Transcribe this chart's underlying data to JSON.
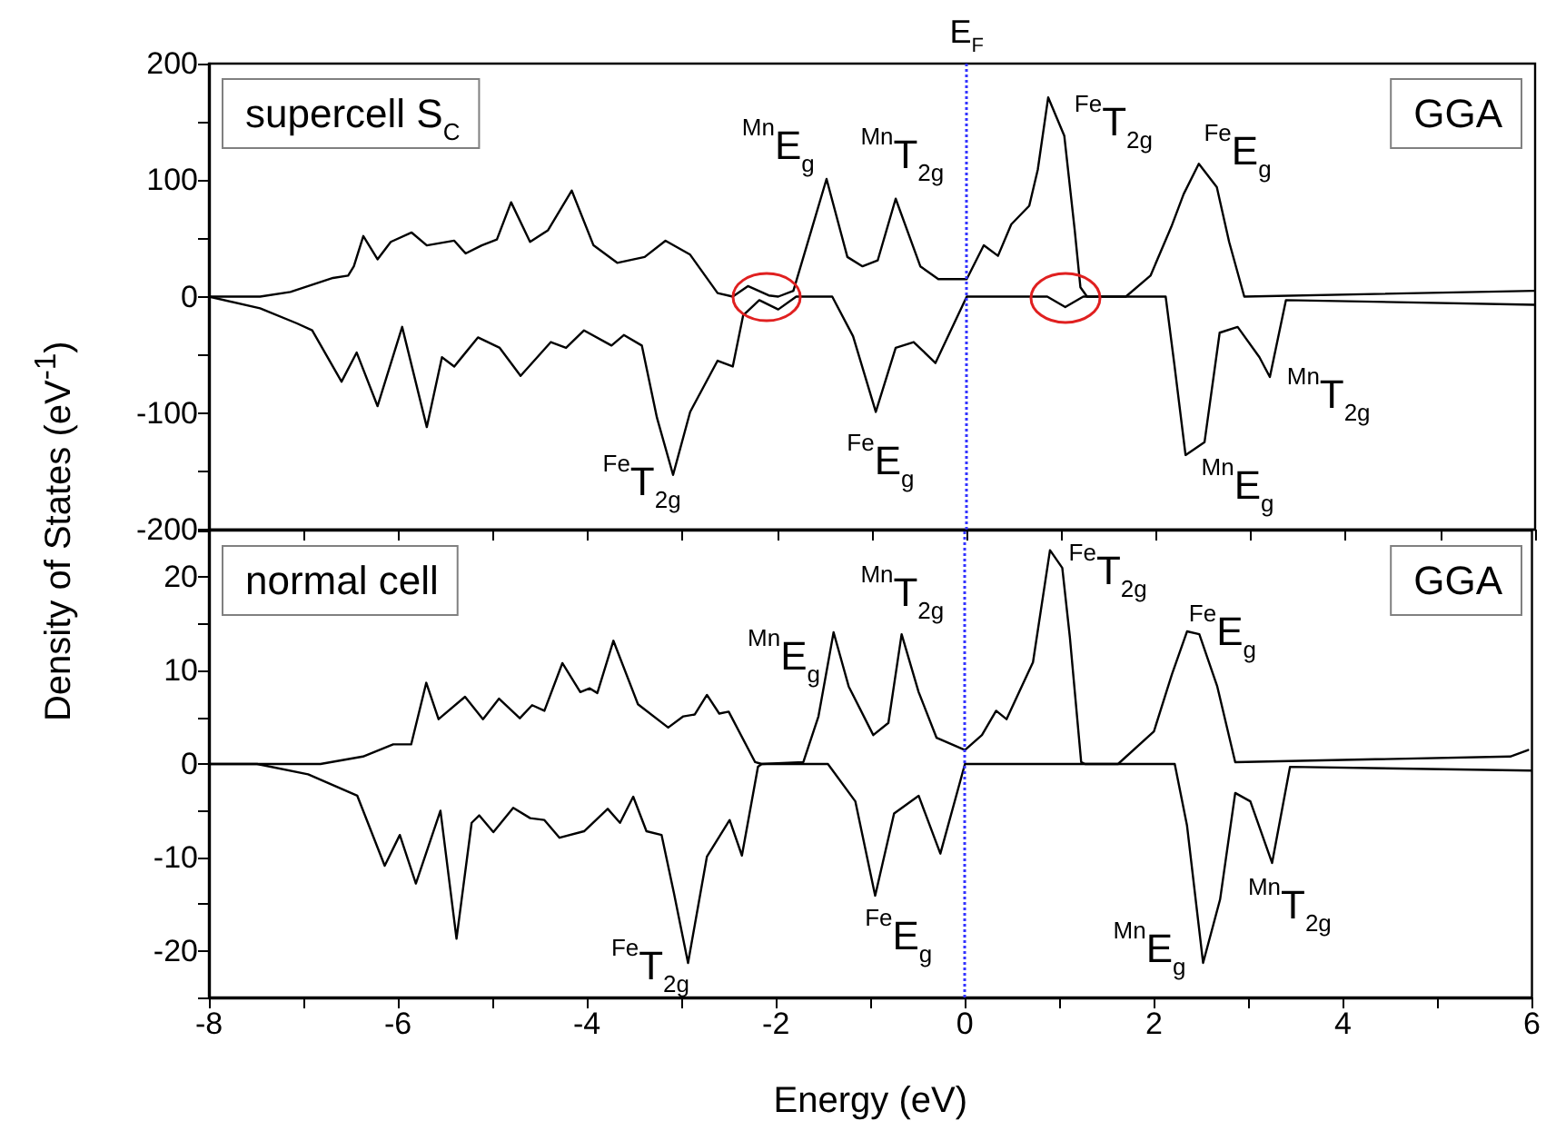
{
  "chart_data": [
    {
      "type": "line",
      "ylabel": "Density of States (eV$^{-1}$)",
      "xlim": [
        -8,
        6
      ],
      "ylim": [
        -200,
        200
      ],
      "xticks": [
        -8,
        {
          "value": -7,
          "label": null
        },
        -6,
        {
          "value": -5,
          "label": null
        },
        -4,
        {
          "value": -3,
          "label": null
        },
        -2,
        {
          "value": -1,
          "label": null
        },
        0,
        {
          "value": 1,
          "label": null
        },
        2,
        {
          "value": 3,
          "label": null
        },
        4,
        {
          "value": 5,
          "label": null
        },
        6
      ],
      "yticks": [
        -200,
        {
          "value": -150,
          "label": null
        },
        -100,
        {
          "value": -50,
          "label": null
        },
        0,
        {
          "value": 50,
          "label": null
        },
        100,
        {
          "value": 150,
          "label": null
        },
        200
      ],
      "tick_labels": "y",
      "grid": false,
      "series": [
        {
          "color": "#000000",
          "x": [
            -8,
            -7.46,
            -7.14,
            -6.69,
            -6.53,
            -6.47,
            -6.37,
            -6.22,
            -6.08,
            -5.86,
            -5.7,
            -5.41,
            -5.29,
            -5.12,
            -4.96,
            -4.81,
            -4.61,
            -4.42,
            -4.17,
            -3.94,
            -3.69,
            -3.4,
            -3.18,
            -2.92,
            -2.63,
            -2.47,
            -2.31,
            -2.09,
            -1.99,
            -1.83,
            -1.64,
            -1.48,
            -1.26,
            -1.1,
            -0.94,
            -0.75,
            -0.49,
            -0.3,
            -0.08,
            0,
            0.18,
            0.33,
            0.47,
            0.66,
            0.75,
            0.86,
            1.03,
            1.14,
            1.2,
            1.27,
            1.68,
            1.94,
            2.16,
            2.29,
            2.45,
            2.64,
            2.77,
            2.93,
            5.99
          ],
          "values": [
            0,
            0,
            4,
            16,
            18,
            26,
            52,
            32,
            47,
            55,
            44,
            48,
            37,
            44,
            49,
            81,
            47,
            57,
            91,
            44,
            29,
            34,
            48,
            36,
            3,
            0,
            9,
            1,
            0,
            5,
            57,
            101,
            34,
            26,
            31,
            84,
            26,
            15,
            15,
            15,
            44,
            35,
            62,
            78,
            109,
            171,
            138,
            57,
            8,
            0,
            0,
            18,
            60,
            88,
            114,
            94,
            47,
            0,
            5
          ]
        },
        {
          "color": "#000000",
          "x": [
            -8,
            -7.46,
            -7.07,
            -6.91,
            -6.6,
            -6.44,
            -6.22,
            -5.96,
            -5.7,
            -5.54,
            -5.41,
            -5.16,
            -4.93,
            -4.71,
            -4.39,
            -4.23,
            -4.04,
            -3.75,
            -3.62,
            -3.43,
            -3.27,
            -3.1,
            -2.92,
            -2.63,
            -2.47,
            -2.36,
            -2.19,
            -1.99,
            -1.8,
            -1.42,
            -1.2,
            -0.96,
            -0.75,
            -0.56,
            -0.33,
            0,
            0.85,
            1.04,
            1.23,
            2.1,
            2.19,
            2.31,
            2.51,
            2.67,
            2.86,
            3.09,
            3.2,
            3.37,
            5.99
          ],
          "values": [
            0,
            -10,
            -23,
            -29,
            -73,
            -48,
            -94,
            -26,
            -112,
            -52,
            -60,
            -35,
            -44,
            -68,
            -39,
            -44,
            -29,
            -42,
            -33,
            -42,
            -104,
            -153,
            -99,
            -55,
            -60,
            -16,
            -3,
            -11,
            0,
            0,
            -34,
            -99,
            -44,
            -39,
            -57,
            0,
            0,
            -9,
            0,
            0,
            -57,
            -136,
            -125,
            -31,
            -26,
            -52,
            -69,
            -3,
            -7
          ]
        }
      ],
      "ref_lines": [
        {
          "axis": "x",
          "value": 0,
          "label": "E$_{F}$",
          "color": "#3333ff",
          "line_style": "dotted"
        }
      ],
      "annotations": [
        "supercell S$_{C}$",
        "GGA",
        "$^{Mn}$E$_{g}$",
        "$^{Mn}$T$_{2g}$",
        "$^{Fe}$T$_{2g}$",
        "$^{Fe}$E$_{g}$",
        "$^{Fe}$T$_{2g}$",
        "$^{Fe}$E$_{g}$",
        "$^{Mn}$T$_{2g}$",
        "$^{Mn}$E$_{g}$"
      ]
    },
    {
      "type": "line",
      "xlabel": "Energy (eV)",
      "xlim": [
        -8,
        6
      ],
      "ylim": [
        -25,
        25
      ],
      "xticks": [
        -8,
        {
          "value": -7,
          "label": null
        },
        -6,
        {
          "value": -5,
          "label": null
        },
        -4,
        {
          "value": -3,
          "label": null
        },
        -2,
        {
          "value": -1,
          "label": null
        },
        0,
        {
          "value": 1,
          "label": null
        },
        2,
        {
          "value": 3,
          "label": null
        },
        4,
        {
          "value": 5,
          "label": null
        },
        6
      ],
      "yticks": [
        {
          "value": -25,
          "label": null
        },
        -20,
        {
          "value": -15,
          "label": null
        },
        -10,
        {
          "value": -5,
          "label": null
        },
        0,
        {
          "value": 5,
          "label": null
        },
        10,
        {
          "value": 15,
          "label": null
        },
        20,
        {
          "value": 25,
          "label": null
        }
      ],
      "grid": false,
      "series": [
        {
          "color": "#000000",
          "x": [
            -8,
            -6.82,
            -6.37,
            -6.05,
            -5.86,
            -5.7,
            -5.57,
            -5.29,
            -5.1,
            -4.93,
            -4.71,
            -4.58,
            -4.45,
            -4.26,
            -4.07,
            -3.97,
            -3.89,
            -3.72,
            -3.46,
            -3.14,
            -2.98,
            -2.86,
            -2.73,
            -2.6,
            -2.5,
            -2.22,
            -2.15,
            -1.71,
            -1.55,
            -1.39,
            -1.23,
            -0.97,
            -0.81,
            -0.67,
            -0.49,
            -0.3,
            0,
            0.18,
            0.33,
            0.44,
            0.72,
            0.9,
            1.03,
            1.11,
            1.23,
            1.27,
            1.62,
            2.0,
            2.19,
            2.35,
            2.48,
            2.67,
            2.86,
            5.77,
            5.96
          ],
          "values": [
            0,
            0,
            0.8,
            2.1,
            2.1,
            8.7,
            4.8,
            7.2,
            4.8,
            7.0,
            4.9,
            6.3,
            5.7,
            10.8,
            7.7,
            8.1,
            7.6,
            13.2,
            6.4,
            3.9,
            5.1,
            5.3,
            7.4,
            5.4,
            5.6,
            0.2,
            0,
            0.2,
            5.1,
            14.1,
            8.3,
            3.1,
            4.4,
            13.9,
            7.7,
            2.8,
            1.5,
            3.1,
            5.7,
            4.8,
            10.9,
            22.9,
            21.0,
            13.6,
            0.2,
            0,
            0,
            3.5,
            9.6,
            14.2,
            13.9,
            8.3,
            0.2,
            0.8,
            1.5
          ]
        },
        {
          "color": "#000000",
          "x": [
            -8,
            -7.49,
            -6.95,
            -6.43,
            -6.14,
            -5.98,
            -5.81,
            -5.55,
            -5.38,
            -5.22,
            -5.14,
            -4.99,
            -4.78,
            -4.6,
            -4.45,
            -4.29,
            -4.03,
            -3.78,
            -3.65,
            -3.51,
            -3.37,
            -3.21,
            -3.08,
            -2.93,
            -2.73,
            -2.49,
            -2.36,
            -2.19,
            -2.15,
            -1.45,
            -1.16,
            -0.95,
            -0.75,
            -0.49,
            -0.26,
            0,
            2.22,
            2.35,
            2.52,
            2.7,
            2.86,
            3.02,
            3.25,
            3.44,
            5.99
          ],
          "values": [
            0,
            0,
            -1.1,
            -3.4,
            -10.9,
            -7.6,
            -12.8,
            -5.0,
            -18.7,
            -6.3,
            -5.5,
            -7.3,
            -4.7,
            -5.8,
            -6.0,
            -7.9,
            -7.2,
            -4.8,
            -6.3,
            -3.5,
            -7.2,
            -7.6,
            -13.8,
            -21.3,
            -9.9,
            -6.0,
            -9.8,
            -0.3,
            0,
            0,
            -4.0,
            -14.1,
            -5.3,
            -3.4,
            -9.6,
            0,
            0,
            -6.6,
            -21.3,
            -14.5,
            -3.1,
            -4.0,
            -10.6,
            -0.3,
            -0.7
          ]
        }
      ],
      "ref_lines": [
        {
          "axis": "x",
          "value": 0,
          "color": "#3333ff",
          "line_style": "dotted"
        }
      ],
      "annotations": [
        "normal cell",
        "GGA",
        "$^{Mn}$E$_{g}$",
        "$^{Mn}$T$_{2g}$",
        "$^{Fe}$T$_{2g}$",
        "$^{Fe}$E$_{g}$",
        "$^{Fe}$T$_{2g}$",
        "$^{Fe}$E$_{g}$",
        "$^{Mn}$T$_{2g}$",
        "$^{Mn}$E$_{g}$"
      ]
    }
  ]
}
